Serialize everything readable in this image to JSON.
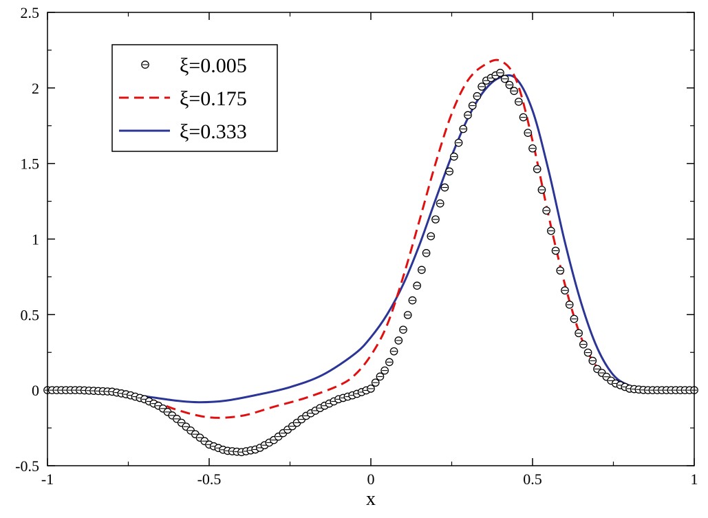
{
  "chart_data": {
    "type": "line",
    "title": "",
    "xlabel": "x",
    "ylabel": "",
    "xlim": [
      -1,
      1
    ],
    "ylim": [
      -0.5,
      2.5
    ],
    "x_ticks": [
      -1,
      -0.5,
      0,
      0.5,
      1
    ],
    "x_tick_labels": [
      "-1",
      "-0.5",
      "0",
      "0.5",
      "1"
    ],
    "y_ticks": [
      -0.5,
      0,
      0.5,
      1,
      1.5,
      2,
      2.5
    ],
    "y_tick_labels": [
      "-0.5",
      "0",
      "0.5",
      "1",
      "1.5",
      "2",
      "2.5"
    ],
    "grid": false,
    "legend_position": "top-left",
    "series": [
      {
        "name": "ξ=0.005",
        "style": "markers",
        "color": "#000000",
        "points": [
          [
            -1.0,
            0.0
          ],
          [
            -0.9,
            0.0
          ],
          [
            -0.8,
            -0.01
          ],
          [
            -0.75,
            -0.03
          ],
          [
            -0.7,
            -0.06
          ],
          [
            -0.65,
            -0.11
          ],
          [
            -0.6,
            -0.19
          ],
          [
            -0.55,
            -0.28
          ],
          [
            -0.5,
            -0.36
          ],
          [
            -0.45,
            -0.4
          ],
          [
            -0.4,
            -0.41
          ],
          [
            -0.35,
            -0.39
          ],
          [
            -0.3,
            -0.33
          ],
          [
            -0.25,
            -0.25
          ],
          [
            -0.2,
            -0.17
          ],
          [
            -0.15,
            -0.11
          ],
          [
            -0.1,
            -0.06
          ],
          [
            -0.05,
            -0.03
          ],
          [
            0.0,
            0.01
          ],
          [
            0.05,
            0.15
          ],
          [
            0.1,
            0.4
          ],
          [
            0.15,
            0.74
          ],
          [
            0.2,
            1.13
          ],
          [
            0.25,
            1.5
          ],
          [
            0.3,
            1.82
          ],
          [
            0.35,
            2.04
          ],
          [
            0.4,
            2.1
          ],
          [
            0.45,
            1.96
          ],
          [
            0.5,
            1.6
          ],
          [
            0.55,
            1.12
          ],
          [
            0.6,
            0.66
          ],
          [
            0.65,
            0.33
          ],
          [
            0.7,
            0.14
          ],
          [
            0.75,
            0.05
          ],
          [
            0.8,
            0.01
          ],
          [
            0.85,
            0.0
          ],
          [
            1.0,
            0.0
          ]
        ]
      },
      {
        "name": "ξ=0.175",
        "style": "dashed",
        "color": "#e01010",
        "points": [
          [
            -1.0,
            0.0
          ],
          [
            -0.9,
            0.0
          ],
          [
            -0.8,
            -0.01
          ],
          [
            -0.7,
            -0.05
          ],
          [
            -0.6,
            -0.13
          ],
          [
            -0.5,
            -0.18
          ],
          [
            -0.4,
            -0.17
          ],
          [
            -0.3,
            -0.11
          ],
          [
            -0.2,
            -0.05
          ],
          [
            -0.1,
            0.03
          ],
          [
            -0.05,
            0.1
          ],
          [
            0.0,
            0.23
          ],
          [
            0.05,
            0.43
          ],
          [
            0.1,
            0.75
          ],
          [
            0.15,
            1.12
          ],
          [
            0.2,
            1.5
          ],
          [
            0.25,
            1.83
          ],
          [
            0.3,
            2.05
          ],
          [
            0.35,
            2.15
          ],
          [
            0.4,
            2.18
          ],
          [
            0.45,
            2.05
          ],
          [
            0.5,
            1.65
          ],
          [
            0.55,
            1.15
          ],
          [
            0.6,
            0.7
          ],
          [
            0.65,
            0.35
          ],
          [
            0.7,
            0.15
          ],
          [
            0.75,
            0.05
          ],
          [
            0.8,
            0.01
          ],
          [
            0.85,
            0.0
          ],
          [
            1.0,
            0.0
          ]
        ]
      },
      {
        "name": "ξ=0.333",
        "style": "solid",
        "color": "#2a3596",
        "points": [
          [
            -1.0,
            0.0
          ],
          [
            -0.9,
            0.0
          ],
          [
            -0.8,
            -0.01
          ],
          [
            -0.7,
            -0.04
          ],
          [
            -0.6,
            -0.07
          ],
          [
            -0.53,
            -0.08
          ],
          [
            -0.45,
            -0.07
          ],
          [
            -0.35,
            -0.03
          ],
          [
            -0.25,
            0.02
          ],
          [
            -0.15,
            0.1
          ],
          [
            -0.05,
            0.24
          ],
          [
            0.0,
            0.35
          ],
          [
            0.05,
            0.5
          ],
          [
            0.1,
            0.7
          ],
          [
            0.15,
            0.96
          ],
          [
            0.2,
            1.26
          ],
          [
            0.25,
            1.55
          ],
          [
            0.3,
            1.8
          ],
          [
            0.35,
            1.98
          ],
          [
            0.4,
            2.07
          ],
          [
            0.45,
            2.06
          ],
          [
            0.5,
            1.85
          ],
          [
            0.55,
            1.45
          ],
          [
            0.6,
            0.98
          ],
          [
            0.65,
            0.58
          ],
          [
            0.7,
            0.28
          ],
          [
            0.75,
            0.1
          ],
          [
            0.8,
            0.03
          ],
          [
            0.85,
            0.01
          ],
          [
            1.0,
            0.0
          ]
        ]
      }
    ]
  }
}
